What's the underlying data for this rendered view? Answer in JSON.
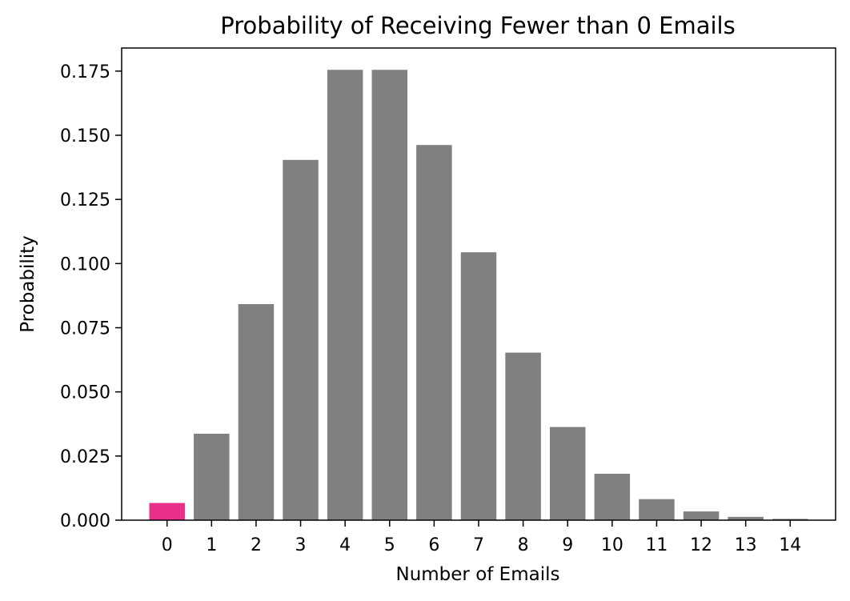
{
  "chart_data": {
    "type": "bar",
    "title": "Probability of Receiving Fewer than 0 Emails",
    "xlabel": "Number of Emails",
    "ylabel": "Probability",
    "categories": [
      "0",
      "1",
      "2",
      "3",
      "4",
      "5",
      "6",
      "7",
      "8",
      "9",
      "10",
      "11",
      "12",
      "13",
      "14"
    ],
    "values": [
      0.0067,
      0.0337,
      0.0842,
      0.1404,
      0.1755,
      0.1755,
      0.1462,
      0.1044,
      0.0653,
      0.0363,
      0.0181,
      0.0082,
      0.0034,
      0.0013,
      0.0005
    ],
    "highlighted_categories": [
      "0"
    ],
    "ylim": [
      0,
      0.184
    ],
    "yticks": [
      "0.000",
      "0.025",
      "0.050",
      "0.075",
      "0.100",
      "0.125",
      "0.150",
      "0.175"
    ],
    "grid": false,
    "legend": "none",
    "colors": {
      "bar": "#808080",
      "highlight": "#e8308a"
    }
  }
}
